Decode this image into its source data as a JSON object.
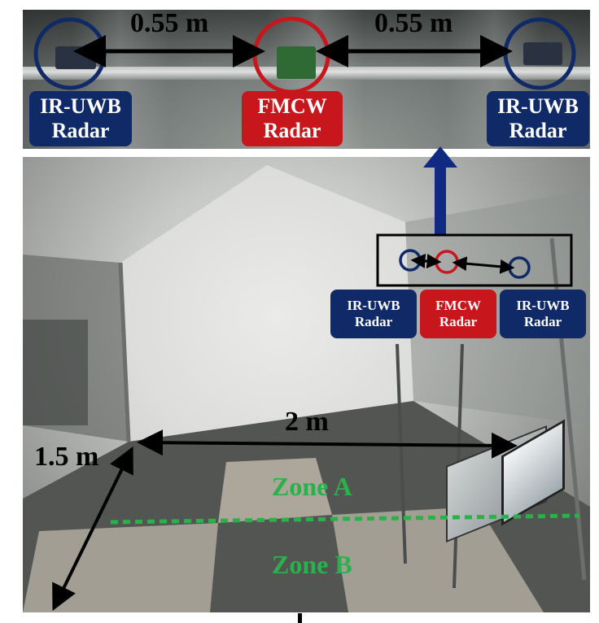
{
  "top_panel": {
    "distance_left": "0.55 m",
    "distance_right": "0.55 m",
    "label_left": [
      "IR-UWB",
      "Radar"
    ],
    "label_center": [
      "FMCW",
      "Radar"
    ],
    "label_right": [
      "IR-UWB",
      "Radar"
    ]
  },
  "bottom_panel": {
    "label_left": [
      "IR-UWB",
      "Radar"
    ],
    "label_center": [
      "FMCW",
      "Radar"
    ],
    "label_right": [
      "IR-UWB",
      "Radar"
    ],
    "width_dimension": "2 m",
    "depth_dimension": "1.5 m",
    "zone_a": "Zone A",
    "zone_b": "Zone B"
  },
  "colors": {
    "ir_uwb": "#0f2a66",
    "fmcw": "#c7161c",
    "zone": "#2bb14a",
    "highlight_arrow": "#0f2a80"
  }
}
